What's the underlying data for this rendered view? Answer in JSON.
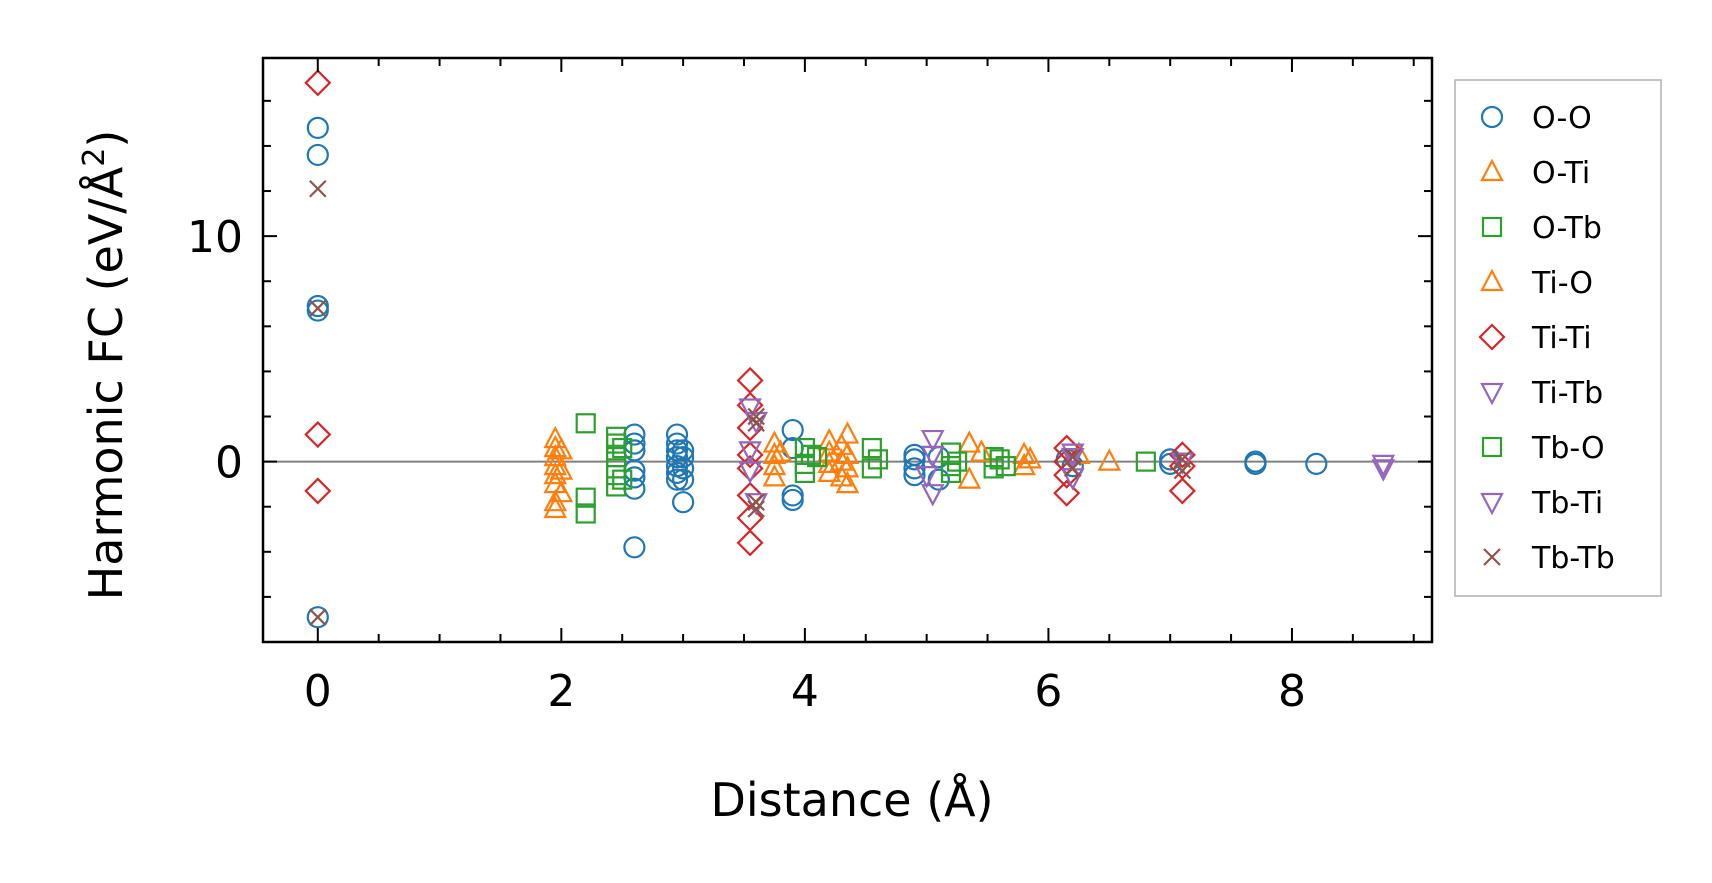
{
  "chart_data": {
    "type": "scatter",
    "title": "",
    "xlabel": "Distance (Å)",
    "ylabel_main": "Harmonic FC (eV/Å",
    "ylabel_sup": "2",
    "ylabel_close": ")",
    "xlim": [
      -0.45,
      9.15
    ],
    "ylim": [
      -8.0,
      17.9
    ],
    "xticks": [
      0,
      2,
      4,
      6,
      8
    ],
    "xtick_labels": [
      "0",
      "2",
      "4",
      "6",
      "8"
    ],
    "yticks": [
      0,
      10
    ],
    "ytick_labels": [
      "0",
      "10"
    ],
    "zero_line": true,
    "grid": false,
    "legend_position": "outside-right",
    "series": [
      {
        "name": "O-O",
        "marker": "circle",
        "color": "#1f77b4",
        "points": [
          [
            0,
            14.8
          ],
          [
            0,
            13.6
          ],
          [
            0,
            6.9
          ],
          [
            0,
            6.7
          ],
          [
            0,
            -6.9
          ],
          [
            2.6,
            1.2
          ],
          [
            2.6,
            0.8
          ],
          [
            2.6,
            0.5
          ],
          [
            2.6,
            -0.4
          ],
          [
            2.6,
            -0.7
          ],
          [
            2.6,
            -1.2
          ],
          [
            2.6,
            -3.8
          ],
          [
            2.95,
            1.2
          ],
          [
            2.95,
            0.8
          ],
          [
            2.95,
            0.5
          ],
          [
            2.95,
            0.2
          ],
          [
            2.95,
            -0.2
          ],
          [
            2.95,
            -0.5
          ],
          [
            2.95,
            -0.8
          ],
          [
            3.0,
            0.5
          ],
          [
            3.0,
            0.2
          ],
          [
            3.0,
            -0.3
          ],
          [
            3.0,
            -0.8
          ],
          [
            3.0,
            -1.8
          ],
          [
            3.9,
            1.4
          ],
          [
            3.9,
            0.6
          ],
          [
            3.9,
            -1.5
          ],
          [
            3.9,
            -1.7
          ],
          [
            4.9,
            0.3
          ],
          [
            4.9,
            0.1
          ],
          [
            4.9,
            -0.3
          ],
          [
            4.9,
            -0.6
          ],
          [
            5.1,
            -0.8
          ],
          [
            5.1,
            0.2
          ],
          [
            6.15,
            0.1
          ],
          [
            6.2,
            -0.2
          ],
          [
            7.0,
            0.1
          ],
          [
            7.0,
            -0.1
          ],
          [
            7.7,
            0.0
          ],
          [
            7.7,
            -0.1
          ],
          [
            8.2,
            -0.1
          ]
        ]
      },
      {
        "name": "O-Ti",
        "marker": "triangle-up",
        "color": "#ff7f0e",
        "points": [
          [
            1.95,
            1.0
          ],
          [
            1.95,
            0.6
          ],
          [
            1.95,
            0.2
          ],
          [
            1.95,
            -0.2
          ],
          [
            1.95,
            -0.6
          ],
          [
            1.95,
            -1.0
          ],
          [
            1.95,
            -1.8
          ],
          [
            1.95,
            -2.1
          ],
          [
            3.75,
            0.8
          ],
          [
            3.75,
            0.3
          ],
          [
            3.75,
            -0.2
          ],
          [
            3.75,
            -0.7
          ],
          [
            4.2,
            0.9
          ],
          [
            4.2,
            0.4
          ],
          [
            4.2,
            -0.1
          ],
          [
            4.2,
            -0.5
          ],
          [
            4.35,
            1.2
          ],
          [
            4.35,
            0.3
          ],
          [
            4.35,
            -0.3
          ],
          [
            4.35,
            -1.0
          ],
          [
            5.35,
            0.8
          ],
          [
            5.35,
            -0.8
          ],
          [
            5.8,
            0.3
          ],
          [
            5.8,
            -0.2
          ],
          [
            6.25,
            0.3
          ],
          [
            6.5,
            0.0
          ]
        ]
      },
      {
        "name": "O-Tb",
        "marker": "square",
        "color": "#2ca02c",
        "points": [
          [
            2.2,
            1.7
          ],
          [
            2.2,
            -1.6
          ],
          [
            2.2,
            -2.3
          ],
          [
            2.45,
            1.1
          ],
          [
            2.45,
            0.8
          ],
          [
            2.45,
            0.2
          ],
          [
            2.45,
            -0.3
          ],
          [
            2.45,
            -0.6
          ],
          [
            2.45,
            -1.1
          ],
          [
            4.0,
            0.6
          ],
          [
            4.0,
            -0.1
          ],
          [
            4.0,
            -0.5
          ],
          [
            4.05,
            0.3
          ],
          [
            4.55,
            0.6
          ],
          [
            4.55,
            -0.3
          ],
          [
            5.2,
            0.4
          ],
          [
            5.2,
            -0.2
          ],
          [
            5.2,
            -0.5
          ],
          [
            5.55,
            0.2
          ],
          [
            5.55,
            -0.3
          ],
          [
            6.8,
            0.0
          ]
        ]
      },
      {
        "name": "Ti-O",
        "marker": "triangle-up",
        "color": "#ff7f0e",
        "points": [
          [
            2.0,
            0.5
          ],
          [
            2.0,
            -0.4
          ],
          [
            2.0,
            -1.4
          ],
          [
            3.8,
            0.4
          ],
          [
            4.3,
            0.7
          ],
          [
            4.3,
            0.0
          ],
          [
            4.3,
            -0.7
          ],
          [
            5.45,
            0.4
          ],
          [
            5.85,
            0.1
          ]
        ]
      },
      {
        "name": "Ti-Ti",
        "marker": "diamond",
        "color": "#d62728",
        "points": [
          [
            0,
            16.8
          ],
          [
            0,
            1.2
          ],
          [
            0,
            -1.3
          ],
          [
            3.55,
            3.6
          ],
          [
            3.55,
            2.5
          ],
          [
            3.55,
            1.5
          ],
          [
            3.55,
            0.3
          ],
          [
            3.55,
            -0.3
          ],
          [
            3.55,
            -1.5
          ],
          [
            3.55,
            -2.5
          ],
          [
            3.55,
            -3.6
          ],
          [
            6.15,
            0.6
          ],
          [
            6.15,
            0.0
          ],
          [
            6.15,
            -0.6
          ],
          [
            6.15,
            -1.4
          ],
          [
            7.1,
            0.3
          ],
          [
            7.1,
            -0.2
          ],
          [
            7.1,
            -1.3
          ]
        ]
      },
      {
        "name": "Ti-Tb",
        "marker": "triangle-down",
        "color": "#9467bd",
        "points": [
          [
            3.55,
            2.4
          ],
          [
            3.55,
            0.5
          ],
          [
            3.55,
            -0.4
          ],
          [
            5.05,
            1.0
          ],
          [
            5.05,
            0.3
          ],
          [
            5.05,
            -1.4
          ],
          [
            6.2,
            0.4
          ],
          [
            6.2,
            -0.7
          ],
          [
            8.75,
            -0.1
          ],
          [
            8.75,
            -0.3
          ]
        ]
      },
      {
        "name": "Tb-O",
        "marker": "square",
        "color": "#2ca02c",
        "points": [
          [
            2.5,
            0.6
          ],
          [
            2.5,
            -0.8
          ],
          [
            4.1,
            0.2
          ],
          [
            4.6,
            0.1
          ],
          [
            5.25,
            0.0
          ],
          [
            5.6,
            0.1
          ],
          [
            5.65,
            -0.2
          ]
        ]
      },
      {
        "name": "Tb-Ti",
        "marker": "triangle-down",
        "color": "#9467bd",
        "points": [
          [
            3.6,
            1.8
          ],
          [
            3.6,
            -1.8
          ],
          [
            5.0,
            -0.6
          ],
          [
            6.2,
            0.2
          ],
          [
            7.1,
            0.0
          ]
        ]
      },
      {
        "name": "Tb-Tb",
        "marker": "x",
        "color": "#8c564b",
        "points": [
          [
            0,
            12.1
          ],
          [
            0,
            6.8
          ],
          [
            0,
            -6.9
          ],
          [
            3.6,
            2.0
          ],
          [
            3.6,
            1.7
          ],
          [
            3.6,
            -1.8
          ],
          [
            3.6,
            -2.1
          ],
          [
            6.2,
            0.2
          ],
          [
            6.2,
            -0.3
          ],
          [
            7.1,
            0.1
          ],
          [
            7.1,
            -0.4
          ]
        ]
      }
    ]
  }
}
